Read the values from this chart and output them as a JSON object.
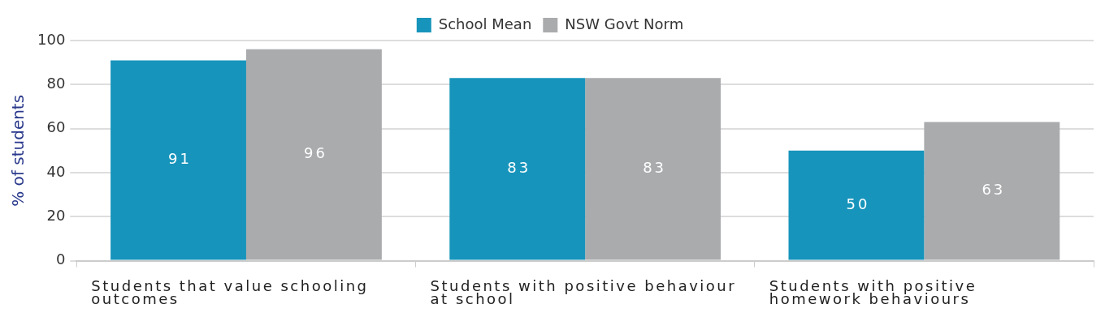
{
  "chart_data": {
    "type": "bar",
    "ylabel": "% of students",
    "categories": [
      "Students that value schooling outcomes",
      "Students with positive behaviour at school",
      "Students with positive homework behaviours"
    ],
    "series": [
      {
        "name": "School Mean",
        "color": "#1794bb",
        "values": [
          91,
          83,
          50
        ]
      },
      {
        "name": "NSW Govt Norm",
        "color": "#aaabad",
        "values": [
          96,
          83,
          63
        ]
      }
    ],
    "ylim": [
      0,
      100
    ],
    "yticks": [
      0,
      20,
      40,
      60,
      80,
      100
    ],
    "grid": "y",
    "legend": "top",
    "data_labels": true
  }
}
